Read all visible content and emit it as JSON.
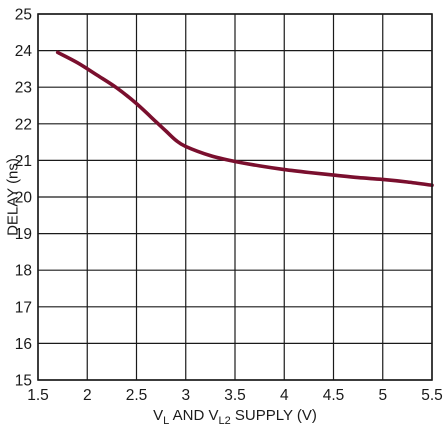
{
  "chart_data": {
    "type": "line",
    "title": "",
    "xlabel": {
      "parts": [
        {
          "text": "V",
          "sub": false
        },
        {
          "text": "L",
          "sub": true
        },
        {
          "text": " AND V",
          "sub": false
        },
        {
          "text": "L2",
          "sub": true
        },
        {
          "text": " SUPPLY (V)",
          "sub": false
        }
      ]
    },
    "ylabel": "DELAY (ns)",
    "xlim": [
      1.5,
      5.5
    ],
    "ylim": [
      15,
      25
    ],
    "xticks": [
      "1.5",
      "2",
      "2.5",
      "3",
      "3.5",
      "4",
      "4.5",
      "5",
      "5.5"
    ],
    "yticks": [
      "15",
      "16",
      "17",
      "18",
      "19",
      "20",
      "21",
      "22",
      "23",
      "24",
      "25"
    ],
    "grid": true,
    "colors": {
      "series": "#7a0f2e",
      "grid": "#1a1a1a"
    },
    "series": [
      {
        "x": [
          1.7,
          1.9,
          2.1,
          2.3,
          2.5,
          2.7,
          2.8,
          2.9,
          3.0,
          3.25,
          3.5,
          3.75,
          4.0,
          4.25,
          4.5,
          4.75,
          5.0,
          5.25,
          5.5
        ],
        "y": [
          23.95,
          23.67,
          23.33,
          22.98,
          22.55,
          22.05,
          21.8,
          21.55,
          21.38,
          21.13,
          20.97,
          20.85,
          20.75,
          20.67,
          20.6,
          20.53,
          20.48,
          20.41,
          20.32
        ]
      }
    ]
  }
}
